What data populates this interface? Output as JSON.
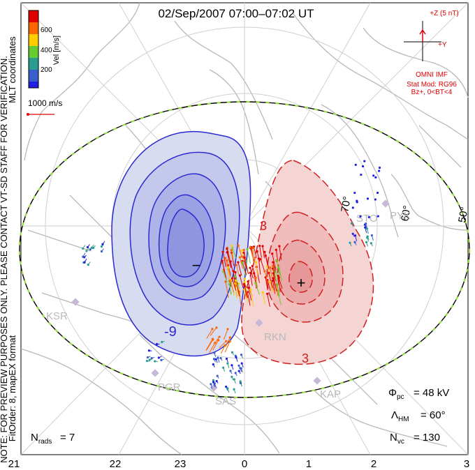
{
  "title": "02/Sep/2007 07:00–07:02 UT",
  "coordinates_label": "MLT coordinates",
  "colorbar": {
    "label": "Vel [m/s]",
    "ticks": [
      "600",
      "400",
      "200"
    ],
    "colors": [
      "#e00000",
      "#ff6600",
      "#ffcc00",
      "#66cc33",
      "#2a9d8f",
      "#3a5fcd",
      "#2020e0"
    ]
  },
  "scale_label": "1000 m/s",
  "imf": {
    "z_label": "+Z (5 nT)",
    "y_label": "+Y",
    "source": "OMNI IMF",
    "model": "Stat Mod: RG96",
    "condition": "Bz+, 0<BT<4"
  },
  "note": "NOTE: FOR PREVIEW PURPOSES ONLY. PLEASE CONTACT VT-SD STAFF FOR VERIFICATION.",
  "fit_order": "FitOrder: 8, mapEX format",
  "stats": {
    "phi_pc_symbol": "Φ",
    "phi_pc_sub": "pc",
    "phi_pc_value": "= 48 kV",
    "lambda_symbol": "Λ",
    "lambda_sub": "HM",
    "lambda_value": "= 60°",
    "nvc_symbol": "N",
    "nvc_sub": "vc",
    "nvc_value": "= 130",
    "nrads_symbol": "N",
    "nrads_sub": "rads",
    "nrads_value": "= 7"
  },
  "mlt_labels": [
    "21",
    "22",
    "23",
    "0",
    "1",
    "2",
    "3"
  ],
  "lat_labels": [
    "70°",
    "60°",
    "50°"
  ],
  "stations": [
    "KSR",
    "PGR",
    "SAS",
    "RKN",
    "KAP",
    "PYK",
    "STO"
  ],
  "cell_symbols": {
    "negative": "−",
    "positive": "+"
  },
  "contour_labels": {
    "negative": "-9",
    "positive": "3",
    "positive_small": "3"
  },
  "colors": {
    "negative_cell": "#2a2ad0",
    "positive_cell": "#d02020",
    "imf_red": "#e00000",
    "coast": "#b8b8b8",
    "grid": "#d0d0d0",
    "station": "#c8b8d8"
  }
}
